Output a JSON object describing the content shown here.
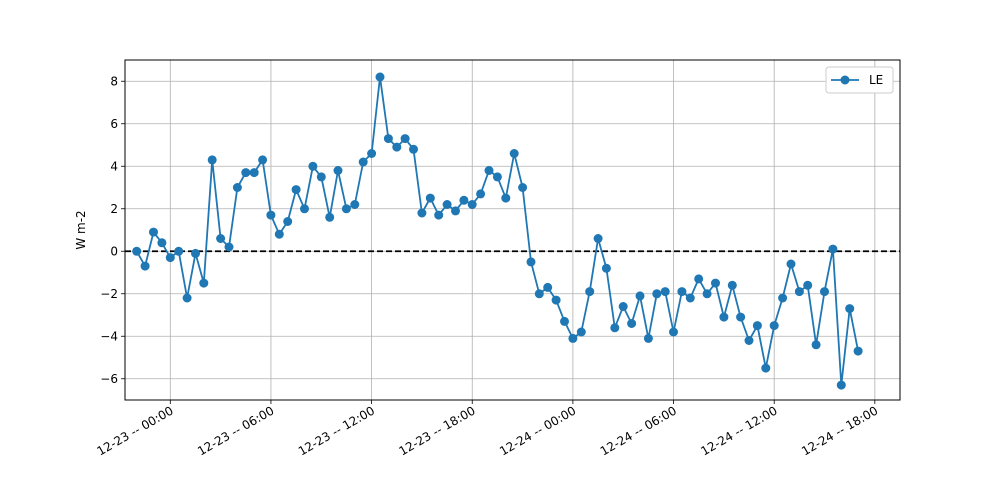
{
  "chart_data": {
    "type": "line",
    "title": "",
    "xlabel": "",
    "ylabel": "W m-2",
    "legend": {
      "entries": [
        "LE"
      ],
      "placement": "top-right"
    },
    "grid": true,
    "ylim": [
      -7,
      9
    ],
    "yticks": [
      -6,
      -4,
      -2,
      0,
      2,
      4,
      6,
      8
    ],
    "xlim": [
      "2023-12-22T21:18",
      "2023-12-24T19:30"
    ],
    "xticks": [
      {
        "t": "2023-12-23T00:00",
        "label": "12-23 -- 00:00"
      },
      {
        "t": "2023-12-23T06:00",
        "label": "12-23 -- 06:00"
      },
      {
        "t": "2023-12-23T12:00",
        "label": "12-23 -- 12:00"
      },
      {
        "t": "2023-12-23T18:00",
        "label": "12-23 -- 18:00"
      },
      {
        "t": "2023-12-24T00:00",
        "label": "12-24 -- 00:00"
      },
      {
        "t": "2023-12-24T06:00",
        "label": "12-24 -- 06:00"
      },
      {
        "t": "2023-12-24T12:00",
        "label": "12-24 -- 12:00"
      },
      {
        "t": "2023-12-24T18:00",
        "label": "12-24 -- 18:00"
      }
    ],
    "reference_line": {
      "y": 0,
      "style": "dashed",
      "color": "#000000"
    },
    "series": [
      {
        "name": "LE",
        "color": "#1f77b4",
        "marker": "circle",
        "points": [
          {
            "t": "2023-12-22T22:00",
            "y": 0.0
          },
          {
            "t": "2023-12-22T22:30",
            "y": -0.7
          },
          {
            "t": "2023-12-22T23:00",
            "y": 0.9
          },
          {
            "t": "2023-12-22T23:30",
            "y": 0.4
          },
          {
            "t": "2023-12-23T00:00",
            "y": -0.3
          },
          {
            "t": "2023-12-23T00:30",
            "y": 0.0
          },
          {
            "t": "2023-12-23T01:00",
            "y": -2.2
          },
          {
            "t": "2023-12-23T01:30",
            "y": -0.1
          },
          {
            "t": "2023-12-23T02:00",
            "y": -1.5
          },
          {
            "t": "2023-12-23T02:30",
            "y": 4.3
          },
          {
            "t": "2023-12-23T03:00",
            "y": 0.6
          },
          {
            "t": "2023-12-23T03:30",
            "y": 0.2
          },
          {
            "t": "2023-12-23T04:00",
            "y": 3.0
          },
          {
            "t": "2023-12-23T04:30",
            "y": 3.7
          },
          {
            "t": "2023-12-23T05:00",
            "y": 3.7
          },
          {
            "t": "2023-12-23T05:30",
            "y": 4.3
          },
          {
            "t": "2023-12-23T06:00",
            "y": 1.7
          },
          {
            "t": "2023-12-23T06:30",
            "y": 0.8
          },
          {
            "t": "2023-12-23T07:00",
            "y": 1.4
          },
          {
            "t": "2023-12-23T07:30",
            "y": 2.9
          },
          {
            "t": "2023-12-23T08:00",
            "y": 2.0
          },
          {
            "t": "2023-12-23T08:30",
            "y": 4.0
          },
          {
            "t": "2023-12-23T09:00",
            "y": 3.5
          },
          {
            "t": "2023-12-23T09:30",
            "y": 1.6
          },
          {
            "t": "2023-12-23T10:00",
            "y": 3.8
          },
          {
            "t": "2023-12-23T10:30",
            "y": 2.0
          },
          {
            "t": "2023-12-23T11:00",
            "y": 2.2
          },
          {
            "t": "2023-12-23T11:30",
            "y": 4.2
          },
          {
            "t": "2023-12-23T12:00",
            "y": 4.6
          },
          {
            "t": "2023-12-23T12:30",
            "y": 8.2
          },
          {
            "t": "2023-12-23T13:00",
            "y": 5.3
          },
          {
            "t": "2023-12-23T13:30",
            "y": 4.9
          },
          {
            "t": "2023-12-23T14:00",
            "y": 5.3
          },
          {
            "t": "2023-12-23T14:30",
            "y": 4.8
          },
          {
            "t": "2023-12-23T15:00",
            "y": 1.8
          },
          {
            "t": "2023-12-23T15:30",
            "y": 2.5
          },
          {
            "t": "2023-12-23T16:00",
            "y": 1.7
          },
          {
            "t": "2023-12-23T16:30",
            "y": 2.2
          },
          {
            "t": "2023-12-23T17:00",
            "y": 1.9
          },
          {
            "t": "2023-12-23T17:30",
            "y": 2.4
          },
          {
            "t": "2023-12-23T18:00",
            "y": 2.2
          },
          {
            "t": "2023-12-23T18:30",
            "y": 2.7
          },
          {
            "t": "2023-12-23T19:00",
            "y": 3.8
          },
          {
            "t": "2023-12-23T19:30",
            "y": 3.5
          },
          {
            "t": "2023-12-23T20:00",
            "y": 2.5
          },
          {
            "t": "2023-12-23T20:30",
            "y": 4.6
          },
          {
            "t": "2023-12-23T21:00",
            "y": 3.0
          },
          {
            "t": "2023-12-23T21:30",
            "y": -0.5
          },
          {
            "t": "2023-12-23T22:00",
            "y": -2.0
          },
          {
            "t": "2023-12-23T22:30",
            "y": -1.7
          },
          {
            "t": "2023-12-23T23:00",
            "y": -2.3
          },
          {
            "t": "2023-12-23T23:30",
            "y": -3.3
          },
          {
            "t": "2023-12-24T00:00",
            "y": -4.1
          },
          {
            "t": "2023-12-24T00:30",
            "y": -3.8
          },
          {
            "t": "2023-12-24T01:00",
            "y": -1.9
          },
          {
            "t": "2023-12-24T01:30",
            "y": 0.6
          },
          {
            "t": "2023-12-24T02:00",
            "y": -0.8
          },
          {
            "t": "2023-12-24T02:30",
            "y": -3.6
          },
          {
            "t": "2023-12-24T03:00",
            "y": -2.6
          },
          {
            "t": "2023-12-24T03:30",
            "y": -3.4
          },
          {
            "t": "2023-12-24T04:00",
            "y": -2.1
          },
          {
            "t": "2023-12-24T04:30",
            "y": -4.1
          },
          {
            "t": "2023-12-24T05:00",
            "y": -2.0
          },
          {
            "t": "2023-12-24T05:30",
            "y": -1.9
          },
          {
            "t": "2023-12-24T06:00",
            "y": -3.8
          },
          {
            "t": "2023-12-24T06:30",
            "y": -1.9
          },
          {
            "t": "2023-12-24T07:00",
            "y": -2.2
          },
          {
            "t": "2023-12-24T07:30",
            "y": -1.3
          },
          {
            "t": "2023-12-24T08:00",
            "y": -2.0
          },
          {
            "t": "2023-12-24T08:30",
            "y": -1.5
          },
          {
            "t": "2023-12-24T09:00",
            "y": -3.1
          },
          {
            "t": "2023-12-24T09:30",
            "y": -1.6
          },
          {
            "t": "2023-12-24T10:00",
            "y": -3.1
          },
          {
            "t": "2023-12-24T10:30",
            "y": -4.2
          },
          {
            "t": "2023-12-24T11:00",
            "y": -3.5
          },
          {
            "t": "2023-12-24T11:30",
            "y": -5.5
          },
          {
            "t": "2023-12-24T12:00",
            "y": -3.5
          },
          {
            "t": "2023-12-24T12:30",
            "y": -2.2
          },
          {
            "t": "2023-12-24T13:00",
            "y": -0.6
          },
          {
            "t": "2023-12-24T13:30",
            "y": -1.9
          },
          {
            "t": "2023-12-24T14:00",
            "y": -1.6
          },
          {
            "t": "2023-12-24T14:30",
            "y": -4.4
          },
          {
            "t": "2023-12-24T15:00",
            "y": -1.9
          },
          {
            "t": "2023-12-24T15:30",
            "y": 0.1
          },
          {
            "t": "2023-12-24T16:00",
            "y": -6.3
          },
          {
            "t": "2023-12-24T16:30",
            "y": -2.7
          },
          {
            "t": "2023-12-24T17:00",
            "y": -4.7
          }
        ]
      }
    ]
  }
}
